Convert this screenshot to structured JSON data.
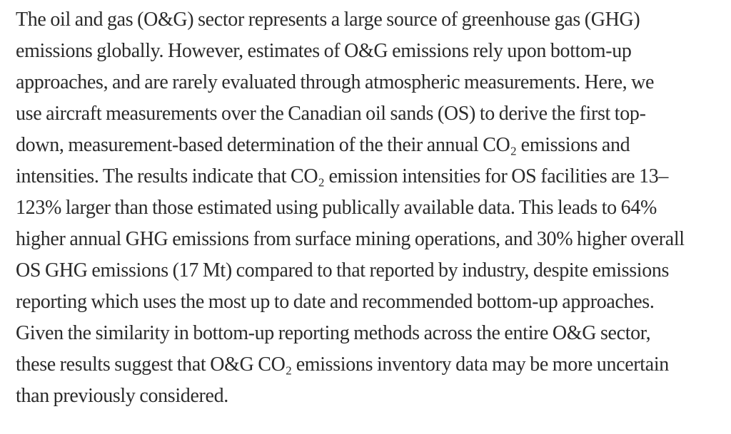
{
  "page": {
    "background_color": "#ffffff",
    "text_color": "#2b2b2b"
  },
  "abstract": {
    "full_text": "The oil and gas (O&G) sector represents a large source of greenhouse gas (GHG) emissions globally. However, estimates of O&G emissions rely upon bottom-up approaches, and are rarely evaluated through atmospheric measurements. Here, we use aircraft measurements over the Canadian oil sands (OS) to derive the first top-down, measurement-based determination of the their annual CO₂ emissions and intensities. The results indicate that CO₂ emission intensities for OS facilities are 13–123% larger than those estimated using publically available data. This leads to 64% higher annual GHG emissions from surface mining operations, and 30% higher overall OS GHG emissions (17 Mt) compared to that reported by industry, despite emissions reporting which uses the most up to date and recommended bottom-up approaches. Given the similarity in bottom-up reporting methods across the entire O&G sector, these results suggest that O&G CO₂ emissions inventory data may be more uncertain than previously considered.",
    "lines": [
      "The oil and gas (O&G) sector represents a large source of greenhouse gas (GHG)",
      "emissions globally. However, estimates of O&G emissions rely upon bottom-up",
      "approaches, and are rarely evaluated through atmospheric measurements. Here, we",
      "use aircraft measurements over the Canadian oil sands (OS) to derive the first top-",
      "down, measurement-based determination of the their annual CO₂ emissions and",
      "intensities. The results indicate that CO₂ emission intensities for OS facilities are 13–",
      "123% larger than those estimated using publically available data. This leads to 64%",
      "higher annual GHG emissions from surface mining operations, and 30% higher overall",
      "OS GHG emissions (17 Mt) compared to that reported by industry, despite emissions",
      "reporting which uses the most up to date and recommended bottom-up approaches.",
      "Given the similarity in bottom-up reporting methods across the entire O&G sector,",
      "these results suggest that O&G CO₂ emissions inventory data may be more uncertain",
      "than previously considered."
    ]
  }
}
